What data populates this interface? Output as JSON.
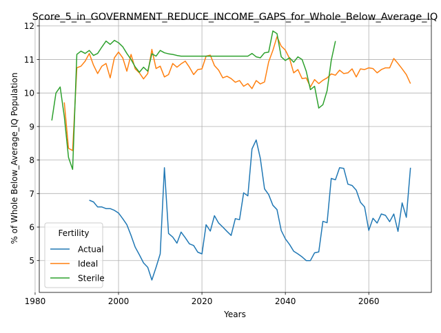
{
  "chart_data": {
    "type": "line",
    "title": "Score_5_in_GOVERNMENT_REDUCE_INCOME_GAPS_for_Whole_Below_Average_IQ",
    "xlabel": "Years",
    "ylabel": "% of Whole Below_Average_IQ Population",
    "xlim": [
      1981,
      2075
    ],
    "ylim": [
      4.05,
      12.2
    ],
    "xticks": [
      1980,
      2000,
      2020,
      2040,
      2060
    ],
    "yticks": [
      5,
      6,
      7,
      8,
      9,
      10,
      11,
      12
    ],
    "grid": true,
    "legend": {
      "title": "Fertility",
      "position": "lower-left"
    },
    "series": [
      {
        "name": "Actual",
        "color": "#1f77b4",
        "x": [
          1993,
          1994,
          1995,
          1996,
          1997,
          1998,
          1999,
          2000,
          2001,
          2002,
          2003,
          2004,
          2005,
          2006,
          2007,
          2008,
          2009,
          2010,
          2011,
          2012,
          2013,
          2014,
          2015,
          2016,
          2017,
          2018,
          2019,
          2020,
          2021,
          2022,
          2023,
          2024,
          2025,
          2026,
          2027,
          2028,
          2029,
          2030,
          2031,
          2032,
          2033,
          2034,
          2035,
          2036,
          2037,
          2038,
          2039,
          2040,
          2041,
          2042,
          2043,
          2044,
          2045,
          2046,
          2047,
          2048,
          2049,
          2050,
          2051,
          2052,
          2053,
          2054,
          2055,
          2056,
          2057,
          2058,
          2059,
          2060,
          2061,
          2062,
          2063,
          2064,
          2065,
          2066,
          2067,
          2068,
          2069,
          2070
        ],
        "values": [
          6.8,
          6.75,
          6.6,
          6.6,
          6.55,
          6.55,
          6.5,
          6.42,
          6.25,
          6.07,
          5.75,
          5.4,
          5.17,
          4.93,
          4.8,
          4.42,
          4.8,
          5.2,
          7.77,
          5.81,
          5.7,
          5.52,
          5.85,
          5.68,
          5.5,
          5.45,
          5.25,
          5.2,
          6.07,
          5.88,
          6.34,
          6.12,
          6.0,
          5.87,
          5.75,
          6.25,
          6.22,
          7.02,
          6.93,
          8.33,
          8.6,
          8.05,
          7.14,
          6.97,
          6.65,
          6.52,
          5.9,
          5.65,
          5.48,
          5.28,
          5.2,
          5.11,
          5.0,
          5.0,
          5.23,
          5.26,
          6.17,
          6.13,
          7.45,
          7.41,
          7.77,
          7.75,
          7.28,
          7.24,
          7.1,
          6.74,
          6.6,
          5.9,
          6.26,
          6.12,
          6.39,
          6.35,
          6.16,
          6.39,
          5.87,
          6.72,
          6.29,
          7.77
        ]
      },
      {
        "name": "Ideal",
        "color": "#ff7f0e",
        "x": [
          1987,
          1988,
          1989,
          1990,
          1991,
          1992,
          1993,
          1994,
          1995,
          1996,
          1997,
          1998,
          1999,
          2000,
          2001,
          2002,
          2003,
          2004,
          2005,
          2006,
          2007,
          2008,
          2009,
          2010,
          2011,
          2012,
          2013,
          2014,
          2015,
          2016,
          2017,
          2018,
          2019,
          2020,
          2021,
          2022,
          2023,
          2024,
          2025,
          2026,
          2027,
          2028,
          2029,
          2030,
          2031,
          2032,
          2033,
          2034,
          2035,
          2036,
          2037,
          2038,
          2039,
          2040,
          2041,
          2042,
          2043,
          2044,
          2045,
          2046,
          2047,
          2048,
          2049,
          2050,
          2051,
          2052,
          2053,
          2054,
          2055,
          2056,
          2057,
          2058,
          2059,
          2060,
          2061,
          2062,
          2063,
          2064,
          2065,
          2066,
          2067,
          2068,
          2069,
          2070
        ],
        "values": [
          9.72,
          8.35,
          8.28,
          10.75,
          10.8,
          10.95,
          11.18,
          10.83,
          10.58,
          10.8,
          10.88,
          10.45,
          11.05,
          11.22,
          11.05,
          10.65,
          11.15,
          10.72,
          10.6,
          10.42,
          10.58,
          11.3,
          10.73,
          10.8,
          10.48,
          10.55,
          10.88,
          10.77,
          10.87,
          10.95,
          10.77,
          10.55,
          10.7,
          10.72,
          11.1,
          11.13,
          10.82,
          10.68,
          10.45,
          10.5,
          10.43,
          10.32,
          10.37,
          10.2,
          10.28,
          10.13,
          10.37,
          10.27,
          10.33,
          10.93,
          11.27,
          11.68,
          11.4,
          11.28,
          11.03,
          10.6,
          10.7,
          10.43,
          10.45,
          10.18,
          10.4,
          10.28,
          10.38,
          10.45,
          10.57,
          10.53,
          10.68,
          10.58,
          10.6,
          10.72,
          10.48,
          10.72,
          10.7,
          10.75,
          10.73,
          10.6,
          10.7,
          10.75,
          10.75,
          11.03,
          10.88,
          10.72,
          10.55,
          10.28
        ]
      },
      {
        "name": "Sterile",
        "color": "#2ca02c",
        "x": [
          1984,
          1985,
          1986,
          1987,
          1988,
          1989,
          1990,
          1991,
          1992,
          1993,
          1994,
          1995,
          1996,
          1997,
          1998,
          1999,
          2000,
          2001,
          2002,
          2003,
          2004,
          2005,
          2006,
          2007,
          2008,
          2009,
          2010,
          2011,
          2012,
          2013,
          2014,
          2015,
          2016,
          2017,
          2018,
          2019,
          2020,
          2021,
          2022,
          2023,
          2024,
          2025,
          2026,
          2027,
          2028,
          2029,
          2030,
          2031,
          2032,
          2033,
          2034,
          2035,
          2036,
          2037,
          2038,
          2039,
          2040,
          2041,
          2042,
          2043,
          2044,
          2045,
          2046,
          2047,
          2048,
          2049,
          2050,
          2051,
          2052
        ],
        "values": [
          9.18,
          10.0,
          10.18,
          9.3,
          8.08,
          7.72,
          11.15,
          11.25,
          11.18,
          11.27,
          11.12,
          11.18,
          11.37,
          11.55,
          11.45,
          11.57,
          11.5,
          11.38,
          11.18,
          11.0,
          10.78,
          10.62,
          10.77,
          10.65,
          11.17,
          11.1,
          11.27,
          11.2,
          11.17,
          11.15,
          11.12,
          11.1,
          11.1,
          11.1,
          11.1,
          11.1,
          11.1,
          11.1,
          11.1,
          11.1,
          11.1,
          11.1,
          11.1,
          11.1,
          11.1,
          11.1,
          11.1,
          11.1,
          11.18,
          11.08,
          11.05,
          11.2,
          11.22,
          11.85,
          11.77,
          11.08,
          10.97,
          11.05,
          10.92,
          11.08,
          11.0,
          10.65,
          10.1,
          10.2,
          9.55,
          9.65,
          10.07,
          10.97,
          11.55
        ]
      }
    ]
  }
}
